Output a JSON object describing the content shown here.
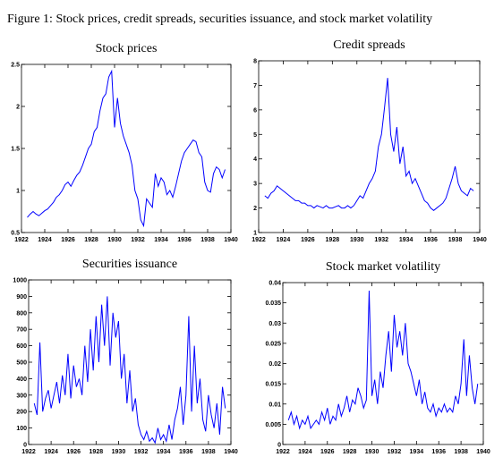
{
  "title": "Figure 1: Stock prices, credit spreads, securities issuance, and stock market volatility",
  "chart_data": [
    {
      "type": "line",
      "title": "Stock prices",
      "color": "#0000ff",
      "xlim": [
        1922,
        1940
      ],
      "xticks": [
        1922,
        1924,
        1926,
        1928,
        1930,
        1932,
        1934,
        1936,
        1938,
        1940
      ],
      "ylim": [
        0.5,
        2.5
      ],
      "yticks": [
        0.5,
        1,
        1.5,
        2,
        2.5
      ],
      "x": [
        1922.5,
        1922.75,
        1923,
        1923.25,
        1923.5,
        1923.75,
        1924,
        1924.25,
        1924.5,
        1924.75,
        1925,
        1925.25,
        1925.5,
        1925.75,
        1926,
        1926.25,
        1926.5,
        1926.75,
        1927,
        1927.25,
        1927.5,
        1927.75,
        1928,
        1928.25,
        1928.5,
        1928.75,
        1929,
        1929.25,
        1929.5,
        1929.75,
        1930,
        1930.25,
        1930.5,
        1930.75,
        1931,
        1931.25,
        1931.5,
        1931.75,
        1932,
        1932.25,
        1932.5,
        1932.75,
        1933,
        1933.25,
        1933.5,
        1933.75,
        1934,
        1934.25,
        1934.5,
        1934.75,
        1935,
        1935.25,
        1935.5,
        1935.75,
        1936,
        1936.25,
        1936.5,
        1936.75,
        1937,
        1937.25,
        1937.5,
        1937.75,
        1938,
        1938.25,
        1938.5,
        1938.75,
        1939,
        1939.25,
        1939.5
      ],
      "values": [
        0.68,
        0.72,
        0.75,
        0.72,
        0.7,
        0.73,
        0.76,
        0.78,
        0.82,
        0.86,
        0.92,
        0.95,
        1.0,
        1.07,
        1.1,
        1.05,
        1.12,
        1.18,
        1.22,
        1.3,
        1.4,
        1.5,
        1.55,
        1.7,
        1.75,
        1.95,
        2.1,
        2.15,
        2.35,
        2.42,
        1.75,
        2.1,
        1.8,
        1.65,
        1.55,
        1.45,
        1.3,
        1.0,
        0.9,
        0.65,
        0.58,
        0.9,
        0.85,
        0.8,
        1.2,
        1.05,
        1.15,
        1.1,
        0.95,
        1.0,
        0.92,
        1.05,
        1.2,
        1.35,
        1.45,
        1.5,
        1.55,
        1.6,
        1.58,
        1.45,
        1.4,
        1.1,
        1.0,
        0.98,
        1.2,
        1.28,
        1.25,
        1.15,
        1.25
      ]
    },
    {
      "type": "line",
      "title": "Credit spreads",
      "color": "#0000ff",
      "xlim": [
        1922,
        1940
      ],
      "xticks": [
        1922,
        1924,
        1926,
        1928,
        1930,
        1932,
        1934,
        1936,
        1938,
        1940
      ],
      "ylim": [
        1,
        8
      ],
      "yticks": [
        1,
        2,
        3,
        4,
        5,
        6,
        7,
        8
      ],
      "x": [
        1922.5,
        1922.75,
        1923,
        1923.25,
        1923.5,
        1923.75,
        1924,
        1924.25,
        1924.5,
        1924.75,
        1925,
        1925.25,
        1925.5,
        1925.75,
        1926,
        1926.25,
        1926.5,
        1926.75,
        1927,
        1927.25,
        1927.5,
        1927.75,
        1928,
        1928.25,
        1928.5,
        1928.75,
        1929,
        1929.25,
        1929.5,
        1929.75,
        1930,
        1930.25,
        1930.5,
        1930.75,
        1931,
        1931.25,
        1931.5,
        1931.75,
        1932,
        1932.25,
        1932.5,
        1932.75,
        1933,
        1933.25,
        1933.5,
        1933.75,
        1934,
        1934.25,
        1934.5,
        1934.75,
        1935,
        1935.25,
        1935.5,
        1935.75,
        1936,
        1936.25,
        1936.5,
        1936.75,
        1937,
        1937.25,
        1937.5,
        1937.75,
        1938,
        1938.25,
        1938.5,
        1938.75,
        1939,
        1939.25,
        1939.5
      ],
      "values": [
        2.5,
        2.4,
        2.6,
        2.7,
        2.9,
        2.8,
        2.7,
        2.6,
        2.5,
        2.4,
        2.3,
        2.3,
        2.2,
        2.2,
        2.1,
        2.1,
        2.0,
        2.1,
        2.05,
        2.0,
        2.1,
        2.0,
        2.0,
        2.05,
        2.1,
        2.0,
        2.0,
        2.1,
        2.0,
        2.1,
        2.3,
        2.5,
        2.4,
        2.7,
        3.0,
        3.2,
        3.5,
        4.5,
        5.0,
        6.1,
        7.3,
        5.0,
        4.3,
        5.3,
        3.8,
        4.5,
        3.3,
        3.5,
        3.0,
        3.2,
        2.9,
        2.6,
        2.3,
        2.2,
        2.0,
        1.9,
        2.0,
        2.1,
        2.2,
        2.4,
        2.8,
        3.2,
        3.7,
        3.0,
        2.7,
        2.6,
        2.5,
        2.8,
        2.7
      ]
    },
    {
      "type": "line",
      "title": "Securities issuance",
      "color": "#0000ff",
      "xlim": [
        1922,
        1940
      ],
      "xticks": [
        1922,
        1924,
        1926,
        1928,
        1930,
        1932,
        1934,
        1936,
        1938,
        1940
      ],
      "ylim": [
        0,
        1000
      ],
      "yticks": [
        0,
        100,
        200,
        300,
        400,
        500,
        600,
        700,
        800,
        900,
        1000
      ],
      "x": [
        1922.5,
        1922.75,
        1923,
        1923.25,
        1923.5,
        1923.75,
        1924,
        1924.25,
        1924.5,
        1924.75,
        1925,
        1925.25,
        1925.5,
        1925.75,
        1926,
        1926.25,
        1926.5,
        1926.75,
        1927,
        1927.25,
        1927.5,
        1927.75,
        1928,
        1928.25,
        1928.5,
        1928.75,
        1929,
        1929.25,
        1929.5,
        1929.75,
        1930,
        1930.25,
        1930.5,
        1930.75,
        1931,
        1931.25,
        1931.5,
        1931.75,
        1932,
        1932.25,
        1932.5,
        1932.75,
        1933,
        1933.25,
        1933.5,
        1933.75,
        1934,
        1934.25,
        1934.5,
        1934.75,
        1935,
        1935.25,
        1935.5,
        1935.75,
        1936,
        1936.25,
        1936.5,
        1936.75,
        1937,
        1937.25,
        1937.5,
        1937.75,
        1938,
        1938.25,
        1938.5,
        1938.75,
        1939,
        1939.25,
        1939.5
      ],
      "values": [
        250,
        180,
        620,
        200,
        280,
        330,
        220,
        300,
        380,
        250,
        420,
        300,
        550,
        280,
        480,
        350,
        400,
        300,
        600,
        380,
        700,
        450,
        780,
        500,
        850,
        600,
        900,
        480,
        800,
        650,
        750,
        400,
        550,
        250,
        450,
        200,
        280,
        120,
        60,
        30,
        80,
        20,
        40,
        10,
        100,
        30,
        60,
        20,
        120,
        30,
        150,
        220,
        350,
        120,
        300,
        780,
        200,
        600,
        250,
        400,
        150,
        80,
        300,
        180,
        100,
        250,
        60,
        350,
        220
      ]
    },
    {
      "type": "line",
      "title": "Stock market volatility",
      "color": "#0000ff",
      "xlim": [
        1922,
        1940
      ],
      "xticks": [
        1922,
        1924,
        1926,
        1928,
        1930,
        1932,
        1934,
        1936,
        1938,
        1940
      ],
      "ylim": [
        0,
        0.04
      ],
      "yticks": [
        0,
        0.005,
        0.01,
        0.015,
        0.02,
        0.025,
        0.03,
        0.035,
        0.04
      ],
      "x": [
        1922.5,
        1922.75,
        1923,
        1923.25,
        1923.5,
        1923.75,
        1924,
        1924.25,
        1924.5,
        1924.75,
        1925,
        1925.25,
        1925.5,
        1925.75,
        1926,
        1926.25,
        1926.5,
        1926.75,
        1927,
        1927.25,
        1927.5,
        1927.75,
        1928,
        1928.25,
        1928.5,
        1928.75,
        1929,
        1929.25,
        1929.5,
        1929.75,
        1930,
        1930.25,
        1930.5,
        1930.75,
        1931,
        1931.25,
        1931.5,
        1931.75,
        1932,
        1932.25,
        1932.5,
        1932.75,
        1933,
        1933.25,
        1933.5,
        1933.75,
        1934,
        1934.25,
        1934.5,
        1934.75,
        1935,
        1935.25,
        1935.5,
        1935.75,
        1936,
        1936.25,
        1936.5,
        1936.75,
        1937,
        1937.25,
        1937.5,
        1937.75,
        1938,
        1938.25,
        1938.5,
        1938.75,
        1939,
        1939.25,
        1939.5
      ],
      "values": [
        0.006,
        0.008,
        0.005,
        0.007,
        0.004,
        0.006,
        0.005,
        0.007,
        0.004,
        0.005,
        0.006,
        0.005,
        0.008,
        0.006,
        0.009,
        0.005,
        0.007,
        0.006,
        0.01,
        0.007,
        0.009,
        0.012,
        0.008,
        0.011,
        0.01,
        0.014,
        0.012,
        0.009,
        0.011,
        0.038,
        0.012,
        0.016,
        0.01,
        0.018,
        0.014,
        0.022,
        0.028,
        0.018,
        0.032,
        0.024,
        0.028,
        0.022,
        0.03,
        0.02,
        0.018,
        0.015,
        0.012,
        0.016,
        0.01,
        0.013,
        0.009,
        0.008,
        0.01,
        0.007,
        0.009,
        0.008,
        0.01,
        0.008,
        0.009,
        0.008,
        0.012,
        0.01,
        0.015,
        0.026,
        0.012,
        0.022,
        0.014,
        0.01,
        0.015
      ]
    }
  ]
}
